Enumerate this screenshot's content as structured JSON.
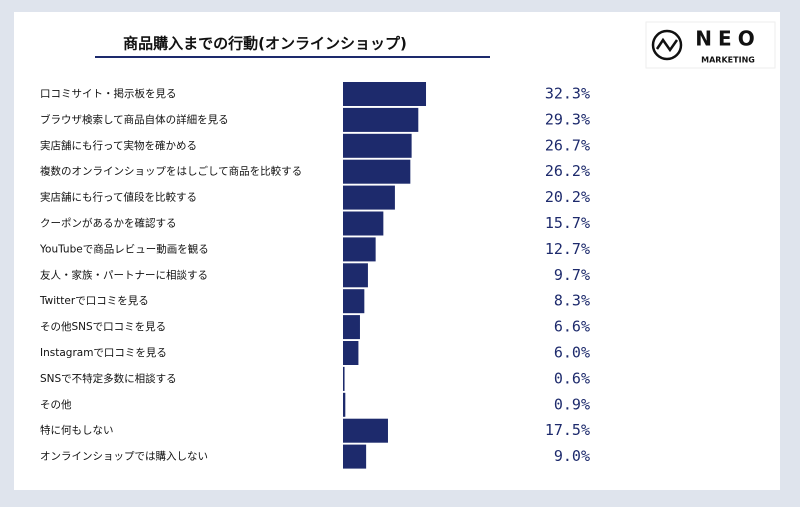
{
  "chart_data": {
    "type": "bar",
    "orientation": "horizontal",
    "title": "商品購入までの行動(オンラインショップ)",
    "categories": [
      "口コミサイト・掲示板を見る",
      "ブラウザ検索して商品自体の詳細を見る",
      "実店舗にも行って実物を確かめる",
      "複数のオンラインショップをはしごして商品を比較する",
      "実店舗にも行って値段を比較する",
      "クーポンがあるかを確認する",
      "YouTubeで商品レビュー動画を観る",
      "友人・家族・パートナーに相談する",
      "Twitterで口コミを見る",
      "その他SNSで口コミを見る",
      "Instagramで口コミを見る",
      "SNSで不特定多数に相談する",
      "その他",
      "特に何もしない",
      "オンラインショップでは購入しない"
    ],
    "values": [
      32.3,
      29.3,
      26.7,
      26.2,
      20.2,
      15.7,
      12.7,
      9.7,
      8.3,
      6.6,
      6.0,
      0.6,
      0.9,
      17.5,
      9.0
    ],
    "value_labels": [
      "32.3%",
      "29.3%",
      "26.7%",
      "26.2%",
      "20.2%",
      "15.7%",
      "12.7%",
      "9.7%",
      "8.3%",
      "6.6%",
      "6.0%",
      "0.6%",
      "0.9%",
      "17.5%",
      "9.0%"
    ],
    "color": "#1d2a6c"
  },
  "logo": {
    "name": "NEO",
    "tagline": "MARKETING"
  }
}
